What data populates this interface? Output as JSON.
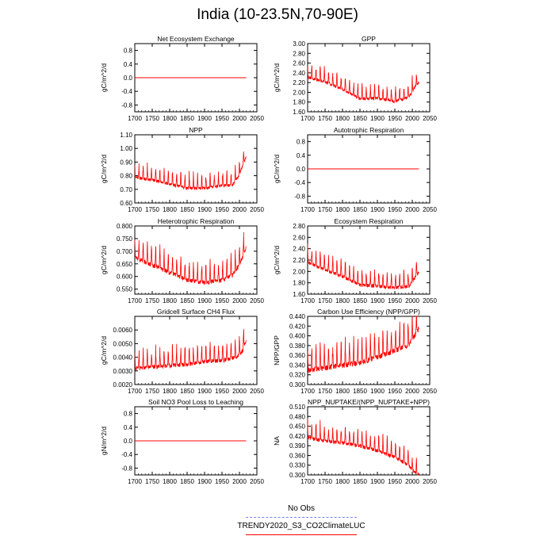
{
  "page_title": "India (10-23.5N,70-90E)",
  "line_color": "#ff0000",
  "obs_color": "#8080ff",
  "legend": {
    "obs_label": "No Obs",
    "model_label": "TRENDY2020_S3_CO2ClimateLUC"
  },
  "chart_data": [
    {
      "type": "line",
      "title": "Net Ecosystem Exchange",
      "ylabel": "gC/m^2/d",
      "xlim": [
        1700,
        2050
      ],
      "ylim": [
        -1.0,
        1.0
      ],
      "xticks": [
        "1700",
        "1750",
        "1800",
        "1850",
        "1900",
        "1950",
        "2000",
        "2050"
      ],
      "yticks": [
        "-0.8",
        "-0.4",
        "0.0",
        "0.4",
        "0.8"
      ],
      "ytick_values": [
        -0.8,
        -0.4,
        0.0,
        0.4,
        0.8
      ],
      "series": [
        {
          "name": "TRENDY2020_S3_CO2ClimateLUC",
          "x_start": 1700,
          "x_end": 2019,
          "points": [
            [
              1700,
              0.0
            ],
            [
              2019,
              0.0
            ]
          ],
          "amplitude": 0.0
        }
      ]
    },
    {
      "type": "line",
      "title": "GPP",
      "ylabel": "gC/m^2/d",
      "xlim": [
        1700,
        2050
      ],
      "ylim": [
        1.6,
        3.0
      ],
      "xticks": [
        "1700",
        "1750",
        "1800",
        "1850",
        "1900",
        "1950",
        "2000",
        "2050"
      ],
      "yticks": [
        "1.60",
        "1.80",
        "2.00",
        "2.20",
        "2.40",
        "2.60",
        "2.80",
        "3.00"
      ],
      "ytick_values": [
        1.6,
        1.8,
        2.0,
        2.2,
        2.4,
        2.6,
        2.8,
        3.0
      ],
      "series": [
        {
          "name": "TRENDY2020_S3_CO2ClimateLUC",
          "x_start": 1700,
          "x_end": 2019,
          "points": [
            [
              1700,
              2.4
            ],
            [
              1750,
              2.3
            ],
            [
              1800,
              2.15
            ],
            [
              1850,
              1.95
            ],
            [
              1900,
              1.97
            ],
            [
              1950,
              1.9
            ],
            [
              1990,
              1.98
            ],
            [
              2010,
              2.22
            ],
            [
              2019,
              2.3
            ]
          ],
          "amplitude": 0.25
        }
      ]
    },
    {
      "type": "line",
      "title": "NPP",
      "ylabel": "gC/m^2/d",
      "xlim": [
        1700,
        2050
      ],
      "ylim": [
        0.6,
        1.1
      ],
      "xticks": [
        "1700",
        "1750",
        "1800",
        "1850",
        "1900",
        "1950",
        "2000",
        "2050"
      ],
      "yticks": [
        "0.60",
        "0.70",
        "0.80",
        "0.90",
        "1.00",
        "1.10"
      ],
      "ytick_values": [
        0.6,
        0.7,
        0.8,
        0.9,
        1.0,
        1.1
      ],
      "series": [
        {
          "name": "TRENDY2020_S3_CO2ClimateLUC",
          "x_start": 1700,
          "x_end": 2019,
          "points": [
            [
              1700,
              0.82
            ],
            [
              1750,
              0.8
            ],
            [
              1800,
              0.77
            ],
            [
              1850,
              0.74
            ],
            [
              1900,
              0.74
            ],
            [
              1950,
              0.76
            ],
            [
              1980,
              0.76
            ],
            [
              2000,
              0.84
            ],
            [
              2019,
              0.97
            ]
          ],
          "amplitude": 0.09
        }
      ]
    },
    {
      "type": "line",
      "title": "Autotrophic Respiration",
      "ylabel": "gC/m^2/d",
      "xlim": [
        1700,
        2050
      ],
      "ylim": [
        -1.0,
        1.0
      ],
      "xticks": [
        "1700",
        "1750",
        "1800",
        "1850",
        "1900",
        "1950",
        "2000",
        "2050"
      ],
      "yticks": [
        "-0.8",
        "-0.4",
        "0.0",
        "0.4",
        "0.8"
      ],
      "ytick_values": [
        -0.8,
        -0.4,
        0.0,
        0.4,
        0.8
      ],
      "series": [
        {
          "name": "TRENDY2020_S3_CO2ClimateLUC",
          "x_start": 1700,
          "x_end": 2019,
          "points": [
            [
              1700,
              0.0
            ],
            [
              2019,
              0.0
            ]
          ],
          "amplitude": 0.0
        }
      ]
    },
    {
      "type": "line",
      "title": "Heterotrophic Respiration",
      "ylabel": "gC/m^2/d",
      "xlim": [
        1700,
        2050
      ],
      "ylim": [
        0.53,
        0.8
      ],
      "xticks": [
        "1700",
        "1750",
        "1800",
        "1850",
        "1900",
        "1950",
        "2000",
        "2050"
      ],
      "yticks": [
        "0.550",
        "0.600",
        "0.650",
        "0.700",
        "0.750",
        "0.800"
      ],
      "ytick_values": [
        0.55,
        0.6,
        0.65,
        0.7,
        0.75,
        0.8
      ],
      "series": [
        {
          "name": "TRENDY2020_S3_CO2ClimateLUC",
          "x_start": 1700,
          "x_end": 2019,
          "points": [
            [
              1700,
              0.7
            ],
            [
              1750,
              0.67
            ],
            [
              1800,
              0.64
            ],
            [
              1850,
              0.61
            ],
            [
              1900,
              0.6
            ],
            [
              1950,
              0.61
            ],
            [
              1980,
              0.63
            ],
            [
              2000,
              0.67
            ],
            [
              2019,
              0.74
            ]
          ],
          "amplitude": 0.07
        }
      ]
    },
    {
      "type": "line",
      "title": "Ecosystem Respiration",
      "ylabel": "gC/m^2/d",
      "xlim": [
        1700,
        2050
      ],
      "ylim": [
        1.6,
        2.8
      ],
      "xticks": [
        "1700",
        "1750",
        "1800",
        "1850",
        "1900",
        "1950",
        "2000",
        "2050"
      ],
      "yticks": [
        "1.60",
        "1.80",
        "2.00",
        "2.20",
        "2.40",
        "2.60",
        "2.80"
      ],
      "ytick_values": [
        1.6,
        1.8,
        2.0,
        2.2,
        2.4,
        2.6,
        2.8
      ],
      "series": [
        {
          "name": "TRENDY2020_S3_CO2ClimateLUC",
          "x_start": 1700,
          "x_end": 2019,
          "points": [
            [
              1700,
              2.25
            ],
            [
              1750,
              2.12
            ],
            [
              1800,
              2.0
            ],
            [
              1850,
              1.85
            ],
            [
              1900,
              1.83
            ],
            [
              1950,
              1.8
            ],
            [
              1990,
              1.82
            ],
            [
              2010,
              2.0
            ],
            [
              2019,
              2.08
            ]
          ],
          "amplitude": 0.25
        }
      ]
    },
    {
      "type": "line",
      "title": "Gridcell Surface CH4 Flux",
      "ylabel": "gC/m^2/d",
      "xlim": [
        1700,
        2050
      ],
      "ylim": [
        0.002,
        0.007
      ],
      "xticks": [
        "1700",
        "1750",
        "1800",
        "1850",
        "1900",
        "1950",
        "2000",
        "2050"
      ],
      "yticks": [
        "0.0020",
        "0.0030",
        "0.0040",
        "0.0050",
        "0.0060"
      ],
      "ytick_values": [
        0.002,
        0.003,
        0.004,
        0.005,
        0.006
      ],
      "series": [
        {
          "name": "TRENDY2020_S3_CO2ClimateLUC",
          "x_start": 1700,
          "x_end": 2019,
          "points": [
            [
              1700,
              0.0036
            ],
            [
              1750,
              0.0037
            ],
            [
              1800,
              0.0038
            ],
            [
              1850,
              0.0039
            ],
            [
              1900,
              0.0041
            ],
            [
              1950,
              0.0042
            ],
            [
              1990,
              0.0044
            ],
            [
              2010,
              0.0049
            ],
            [
              2019,
              0.0057
            ]
          ],
          "amplitude": 0.0012
        }
      ]
    },
    {
      "type": "line",
      "title": "Carbon Use Efficiency (NPP/GPP)",
      "ylabel": "NPP/GPP",
      "xlim": [
        1700,
        2050
      ],
      "ylim": [
        0.3,
        0.44
      ],
      "xticks": [
        "1700",
        "1750",
        "1800",
        "1850",
        "1900",
        "1950",
        "2000",
        "2050"
      ],
      "yticks": [
        "0.300",
        "0.320",
        "0.340",
        "0.360",
        "0.380",
        "0.400",
        "0.420",
        "0.440"
      ],
      "ytick_values": [
        0.3,
        0.32,
        0.34,
        0.36,
        0.38,
        0.4,
        0.42,
        0.44
      ],
      "series": [
        {
          "name": "TRENDY2020_S3_CO2ClimateLUC",
          "x_start": 1700,
          "x_end": 2019,
          "points": [
            [
              1700,
              0.345
            ],
            [
              1750,
              0.35
            ],
            [
              1800,
              0.355
            ],
            [
              1850,
              0.36
            ],
            [
              1900,
              0.372
            ],
            [
              1950,
              0.385
            ],
            [
              1990,
              0.398
            ],
            [
              2010,
              0.42
            ],
            [
              2019,
              0.43
            ]
          ],
          "amplitude": 0.045
        }
      ]
    },
    {
      "type": "line",
      "title": "Soil NO3 Pool Loss to Leaching",
      "ylabel": "gN/m^2/d",
      "xlim": [
        1700,
        2050
      ],
      "ylim": [
        -1.0,
        1.0
      ],
      "xticks": [
        "1700",
        "1750",
        "1800",
        "1850",
        "1900",
        "1950",
        "2000",
        "2050"
      ],
      "yticks": [
        "-0.8",
        "-0.4",
        "0.0",
        "0.4",
        "0.8"
      ],
      "ytick_values": [
        -0.8,
        -0.4,
        0.0,
        0.4,
        0.8
      ],
      "series": [
        {
          "name": "TRENDY2020_S3_CO2ClimateLUC",
          "x_start": 1700,
          "x_end": 2019,
          "points": [
            [
              1700,
              0.0
            ],
            [
              2019,
              0.0
            ]
          ],
          "amplitude": 0.0
        }
      ]
    },
    {
      "type": "line",
      "title": "NPP_NUPTAKE/(NPP_NUPTAKE+NPP)",
      "ylabel": "NA",
      "xlim": [
        1700,
        2050
      ],
      "ylim": [
        0.3,
        0.51
      ],
      "xticks": [
        "1700",
        "1750",
        "1800",
        "1850",
        "1900",
        "1950",
        "2000",
        "2050"
      ],
      "yticks": [
        "0.300",
        "0.330",
        "0.360",
        "0.390",
        "0.420",
        "0.450",
        "0.480",
        "0.510"
      ],
      "ytick_values": [
        0.3,
        0.33,
        0.36,
        0.39,
        0.42,
        0.45,
        0.48,
        0.51
      ],
      "series": [
        {
          "name": "TRENDY2020_S3_CO2ClimateLUC",
          "x_start": 1700,
          "x_end": 2019,
          "points": [
            [
              1700,
              0.43
            ],
            [
              1750,
              0.42
            ],
            [
              1800,
              0.415
            ],
            [
              1850,
              0.405
            ],
            [
              1900,
              0.39
            ],
            [
              1950,
              0.37
            ],
            [
              1990,
              0.345
            ],
            [
              2010,
              0.32
            ],
            [
              2019,
              0.315
            ]
          ],
          "amplitude": 0.045
        }
      ]
    }
  ]
}
